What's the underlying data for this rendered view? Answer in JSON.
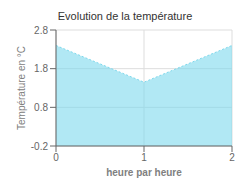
{
  "chart_data": {
    "type": "area",
    "title": "Evolution de la température",
    "x_label": "heure par heure",
    "y_label": "Température en °C",
    "x": [
      0,
      1,
      2
    ],
    "values": [
      2.4,
      1.45,
      2.4
    ],
    "color": "#7dd8ec",
    "line_style": "dotted",
    "xlim": [
      0,
      2
    ],
    "ylim": [
      -0.2,
      2.8
    ],
    "xticks": [
      0,
      1,
      2
    ],
    "yticks": [
      -0.2,
      0.8,
      1.8,
      2.8
    ],
    "grid": true
  }
}
